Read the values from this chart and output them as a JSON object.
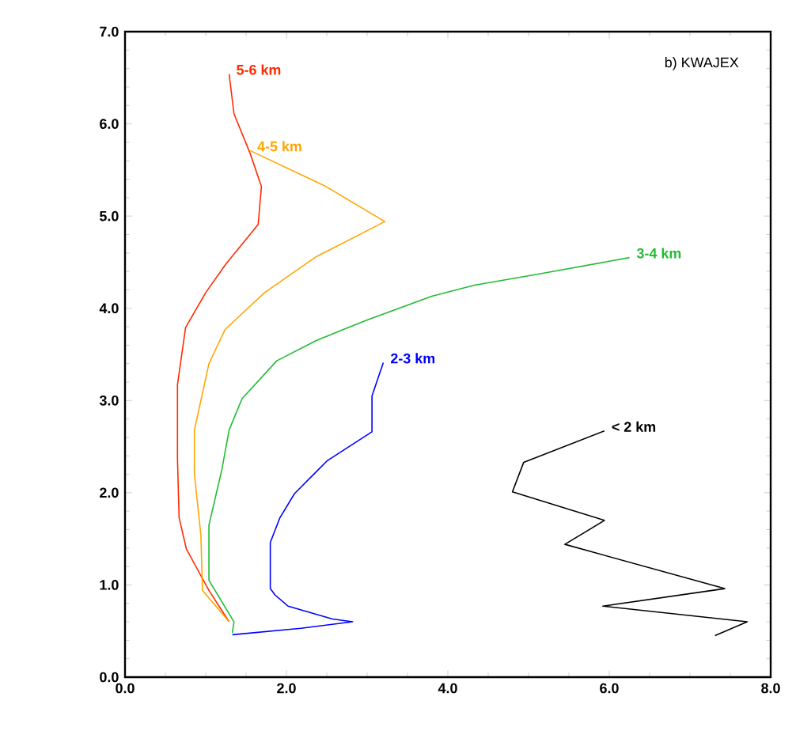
{
  "chart_data": {
    "type": "line",
    "annotations": [
      "b) KWAJEX"
    ],
    "xlim": [
      0,
      8
    ],
    "ylim": [
      0,
      7
    ],
    "xticks": [
      {
        "value": 0,
        "label": "0.0"
      },
      {
        "value": 2,
        "label": "2.0"
      },
      {
        "value": 4,
        "label": "4.0"
      },
      {
        "value": 6,
        "label": "6.0"
      },
      {
        "value": 8,
        "label": "8.0"
      }
    ],
    "yticks": [
      {
        "value": 0,
        "label": "0.0"
      },
      {
        "value": 1,
        "label": "1.0"
      },
      {
        "value": 2,
        "label": "2.0"
      },
      {
        "value": 3,
        "label": "3.0"
      },
      {
        "value": 4,
        "label": "4.0"
      },
      {
        "value": 5,
        "label": "5.0"
      },
      {
        "value": 6,
        "label": "6.0"
      },
      {
        "value": 7,
        "label": "7.0"
      }
    ],
    "series": [
      {
        "name": "5-6 km",
        "color": "#ff2a00",
        "x": [
          1.29,
          1.04,
          0.76,
          0.67,
          0.65,
          0.65,
          0.75,
          1.0,
          1.25,
          1.65,
          1.69,
          1.55,
          1.35,
          1.29
        ],
        "values": [
          0.6,
          0.94,
          1.39,
          1.73,
          2.37,
          3.17,
          3.79,
          4.17,
          4.48,
          4.91,
          5.32,
          5.68,
          6.11,
          6.54
        ]
      },
      {
        "name": "4-5 km",
        "color": "#ffa500",
        "x": [
          1.29,
          0.96,
          0.94,
          0.86,
          0.86,
          1.04,
          1.24,
          1.73,
          2.37,
          3.22,
          2.47,
          1.55
        ],
        "values": [
          0.6,
          0.94,
          1.54,
          2.2,
          2.68,
          3.4,
          3.77,
          4.17,
          4.56,
          4.94,
          5.33,
          5.71
        ]
      },
      {
        "name": "3-4 km",
        "color": "#22bb33",
        "x": [
          1.33,
          1.35,
          1.04,
          1.04,
          1.2,
          1.29,
          1.45,
          1.88,
          2.37,
          2.76,
          3.02,
          3.8,
          4.33,
          5.12,
          6.25
        ],
        "values": [
          0.48,
          0.6,
          1.05,
          1.65,
          2.25,
          2.68,
          3.02,
          3.43,
          3.65,
          3.79,
          3.88,
          4.13,
          4.25,
          4.37,
          4.55
        ]
      },
      {
        "name": "2-3 km",
        "color": "#0000ff",
        "x": [
          1.33,
          2.18,
          2.82,
          2.57,
          2.02,
          1.86,
          1.8,
          1.8,
          1.92,
          2.1,
          2.35,
          2.51,
          3.06,
          3.06,
          3.2
        ],
        "values": [
          0.46,
          0.53,
          0.6,
          0.63,
          0.77,
          0.89,
          0.96,
          1.46,
          1.73,
          1.99,
          2.21,
          2.35,
          2.66,
          3.05,
          3.41
        ]
      },
      {
        "name": "< 2 km",
        "color": "#000000",
        "x": [
          7.31,
          7.71,
          5.92,
          7.43,
          5.45,
          5.94,
          4.8,
          4.94,
          5.94
        ],
        "values": [
          0.45,
          0.6,
          0.77,
          0.96,
          1.44,
          1.7,
          2.01,
          2.33,
          2.67
        ]
      }
    ]
  }
}
